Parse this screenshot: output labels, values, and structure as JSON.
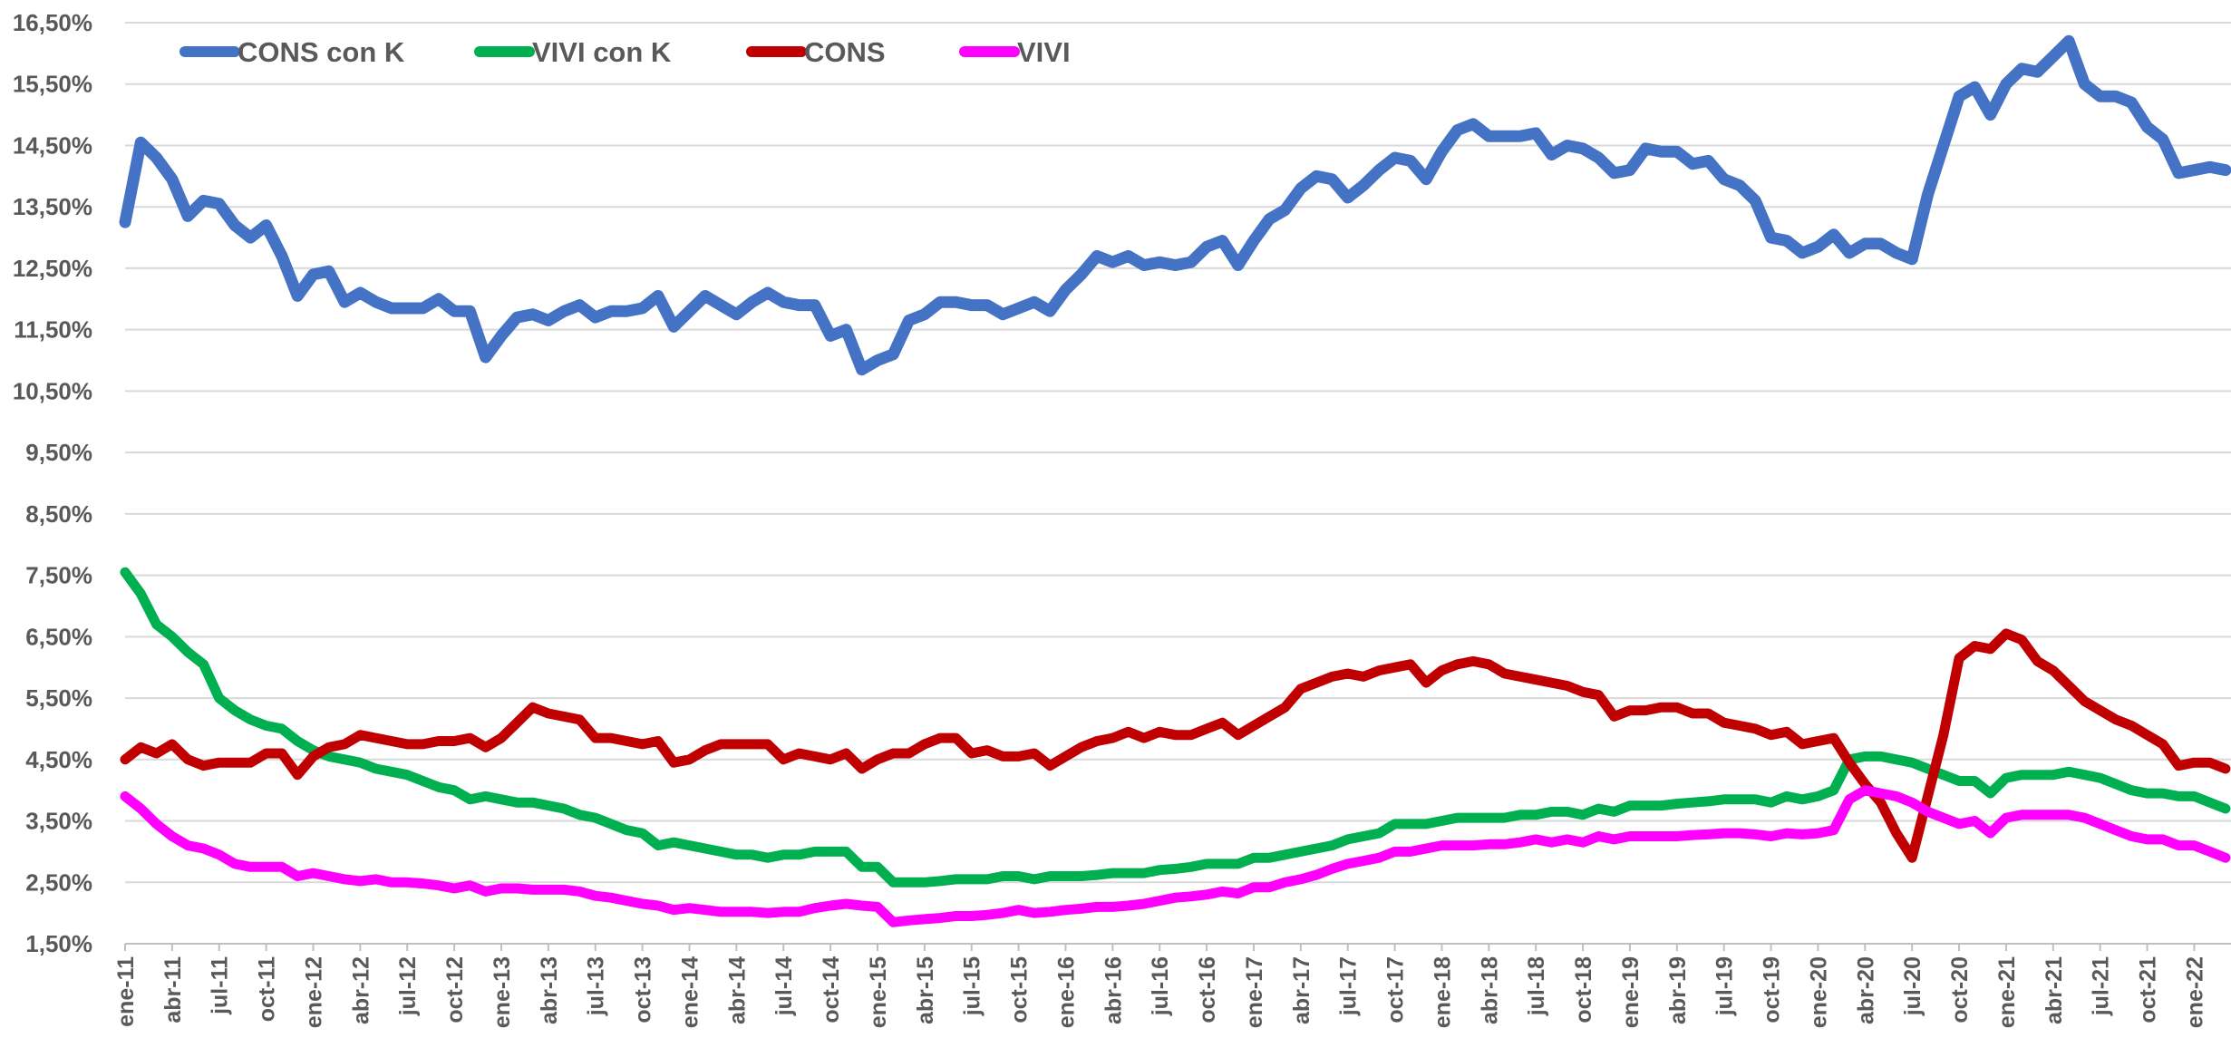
{
  "chart_data": {
    "type": "line",
    "categories": [
      "ene-11",
      null,
      null,
      "abr-11",
      null,
      null,
      "jul-11",
      null,
      null,
      "oct-11",
      null,
      null,
      "ene-12",
      null,
      null,
      "abr-12",
      null,
      null,
      "jul-12",
      null,
      null,
      "oct-12",
      null,
      null,
      "ene-13",
      null,
      null,
      "abr-13",
      null,
      null,
      "jul-13",
      null,
      null,
      "oct-13",
      null,
      null,
      "ene-14",
      null,
      null,
      "abr-14",
      null,
      null,
      "jul-14",
      null,
      null,
      "oct-14",
      null,
      null,
      "ene-15",
      null,
      null,
      "abr-15",
      null,
      null,
      "jul-15",
      null,
      null,
      "oct-15",
      null,
      null,
      "ene-16",
      null,
      null,
      "abr-16",
      null,
      null,
      "jul-16",
      null,
      null,
      "oct-16",
      null,
      null,
      "ene-17",
      null,
      null,
      "abr-17",
      null,
      null,
      "jul-17",
      null,
      null,
      "oct-17",
      null,
      null,
      "ene-18",
      null,
      null,
      "abr-18",
      null,
      null,
      "jul-18",
      null,
      null,
      "oct-18",
      null,
      null,
      "ene-19",
      null,
      null,
      "abr-19",
      null,
      null,
      "jul-19",
      null,
      null,
      "oct-19",
      null,
      null,
      "ene-20",
      null,
      null,
      "abr-20",
      null,
      null,
      "jul-20",
      null,
      null,
      "oct-20",
      null,
      null,
      "ene-21",
      null,
      null,
      "abr-21",
      null,
      null,
      "jul-21",
      null,
      null,
      "oct-21",
      null,
      null,
      "ene-22",
      null,
      null
    ],
    "series": [
      {
        "name": "CONS con K",
        "color": "#4472c4",
        "values": [
          13.25,
          14.55,
          14.3,
          13.95,
          13.35,
          13.6,
          13.55,
          13.2,
          13.0,
          13.2,
          12.7,
          12.05,
          12.4,
          12.45,
          11.95,
          12.1,
          11.95,
          11.85,
          11.85,
          11.85,
          12.0,
          11.8,
          11.8,
          11.05,
          11.4,
          11.7,
          11.75,
          11.65,
          11.8,
          11.9,
          11.7,
          11.8,
          11.8,
          11.85,
          12.05,
          11.55,
          11.8,
          12.05,
          11.9,
          11.75,
          11.95,
          12.1,
          11.95,
          11.9,
          11.9,
          11.4,
          11.5,
          10.85,
          11.0,
          11.1,
          11.65,
          11.75,
          11.95,
          11.95,
          11.9,
          11.9,
          11.75,
          11.85,
          11.95,
          11.8,
          12.15,
          12.4,
          12.7,
          12.6,
          12.7,
          12.55,
          12.6,
          12.55,
          12.6,
          12.85,
          12.95,
          12.55,
          12.95,
          13.3,
          13.45,
          13.8,
          14.0,
          13.95,
          13.65,
          13.85,
          14.1,
          14.3,
          14.25,
          13.95,
          14.4,
          14.75,
          14.85,
          14.65,
          14.65,
          14.65,
          14.7,
          14.35,
          14.5,
          14.45,
          14.3,
          14.05,
          14.1,
          14.45,
          14.4,
          14.4,
          14.2,
          14.25,
          13.95,
          13.85,
          13.6,
          13.0,
          12.95,
          12.75,
          12.85,
          13.05,
          12.75,
          12.9,
          12.9,
          12.75,
          12.65,
          13.7,
          14.5,
          15.3,
          15.45,
          15.0,
          15.5,
          15.75,
          15.7,
          15.95,
          16.2,
          15.5,
          15.3,
          15.3,
          15.2,
          14.8,
          14.6,
          14.05,
          14.1,
          14.15,
          14.1
        ]
      },
      {
        "name": "VIVI con K",
        "color": "#00b050",
        "values": [
          7.55,
          7.2,
          6.7,
          6.5,
          6.25,
          6.05,
          5.5,
          5.3,
          5.15,
          5.05,
          5.0,
          4.8,
          4.65,
          4.55,
          4.5,
          4.45,
          4.35,
          4.3,
          4.25,
          4.15,
          4.05,
          4.0,
          3.85,
          3.9,
          3.85,
          3.8,
          3.8,
          3.75,
          3.7,
          3.6,
          3.55,
          3.45,
          3.35,
          3.3,
          3.1,
          3.15,
          3.1,
          3.05,
          3.0,
          2.95,
          2.95,
          2.9,
          2.95,
          2.95,
          3.0,
          3.0,
          3.0,
          2.75,
          2.75,
          2.5,
          2.5,
          2.5,
          2.52,
          2.55,
          2.55,
          2.55,
          2.6,
          2.6,
          2.55,
          2.6,
          2.6,
          2.6,
          2.62,
          2.65,
          2.65,
          2.65,
          2.7,
          2.72,
          2.75,
          2.8,
          2.8,
          2.8,
          2.9,
          2.9,
          2.95,
          3.0,
          3.05,
          3.1,
          3.2,
          3.25,
          3.3,
          3.45,
          3.45,
          3.45,
          3.5,
          3.55,
          3.55,
          3.55,
          3.55,
          3.6,
          3.6,
          3.65,
          3.65,
          3.6,
          3.7,
          3.65,
          3.75,
          3.75,
          3.75,
          3.78,
          3.8,
          3.82,
          3.85,
          3.85,
          3.85,
          3.8,
          3.9,
          3.85,
          3.9,
          4.0,
          4.5,
          4.55,
          4.55,
          4.5,
          4.45,
          4.35,
          4.25,
          4.15,
          4.15,
          3.95,
          4.2,
          4.25,
          4.25,
          4.25,
          4.3,
          4.25,
          4.2,
          4.1,
          4.0,
          3.95,
          3.95,
          3.9,
          3.9,
          3.8,
          3.7
        ]
      },
      {
        "name": "CONS",
        "color": "#c00000",
        "values": [
          4.5,
          4.7,
          4.6,
          4.75,
          4.5,
          4.4,
          4.45,
          4.45,
          4.45,
          4.6,
          4.6,
          4.25,
          4.55,
          4.7,
          4.75,
          4.9,
          4.85,
          4.8,
          4.75,
          4.75,
          4.8,
          4.8,
          4.85,
          4.7,
          4.85,
          5.1,
          5.35,
          5.25,
          5.2,
          5.15,
          4.85,
          4.85,
          4.8,
          4.75,
          4.8,
          4.45,
          4.5,
          4.65,
          4.75,
          4.75,
          4.75,
          4.75,
          4.5,
          4.6,
          4.55,
          4.5,
          4.6,
          4.35,
          4.5,
          4.6,
          4.6,
          4.75,
          4.85,
          4.85,
          4.6,
          4.65,
          4.55,
          4.55,
          4.6,
          4.4,
          4.55,
          4.7,
          4.8,
          4.85,
          4.95,
          4.85,
          4.95,
          4.9,
          4.9,
          5.0,
          5.1,
          4.9,
          5.05,
          5.2,
          5.35,
          5.65,
          5.75,
          5.85,
          5.9,
          5.85,
          5.95,
          6.0,
          6.05,
          5.75,
          5.95,
          6.05,
          6.1,
          6.05,
          5.9,
          5.85,
          5.8,
          5.75,
          5.7,
          5.6,
          5.55,
          5.2,
          5.3,
          5.3,
          5.35,
          5.35,
          5.25,
          5.25,
          5.1,
          5.05,
          5.0,
          4.9,
          4.95,
          4.75,
          4.8,
          4.85,
          4.45,
          4.1,
          3.8,
          3.3,
          2.9,
          3.9,
          4.9,
          6.15,
          6.35,
          6.3,
          6.55,
          6.45,
          6.1,
          5.95,
          5.7,
          5.45,
          5.3,
          5.15,
          5.05,
          4.9,
          4.75,
          4.4,
          4.45,
          4.45,
          4.35
        ]
      },
      {
        "name": "VIVI",
        "color": "#ff00ff",
        "values": [
          3.9,
          3.7,
          3.45,
          3.25,
          3.1,
          3.05,
          2.95,
          2.8,
          2.75,
          2.75,
          2.75,
          2.6,
          2.65,
          2.6,
          2.55,
          2.52,
          2.55,
          2.5,
          2.5,
          2.48,
          2.45,
          2.4,
          2.45,
          2.35,
          2.4,
          2.4,
          2.38,
          2.38,
          2.38,
          2.35,
          2.28,
          2.25,
          2.2,
          2.15,
          2.12,
          2.05,
          2.08,
          2.05,
          2.02,
          2.02,
          2.02,
          2.0,
          2.02,
          2.02,
          2.08,
          2.12,
          2.15,
          2.12,
          2.1,
          1.85,
          1.88,
          1.9,
          1.92,
          1.95,
          1.95,
          1.97,
          2.0,
          2.05,
          2.0,
          2.02,
          2.05,
          2.07,
          2.1,
          2.1,
          2.12,
          2.15,
          2.2,
          2.25,
          2.27,
          2.3,
          2.35,
          2.32,
          2.42,
          2.42,
          2.5,
          2.55,
          2.62,
          2.72,
          2.8,
          2.85,
          2.9,
          3.0,
          3.0,
          3.05,
          3.1,
          3.1,
          3.1,
          3.12,
          3.12,
          3.15,
          3.2,
          3.15,
          3.2,
          3.15,
          3.25,
          3.2,
          3.25,
          3.25,
          3.25,
          3.25,
          3.27,
          3.28,
          3.3,
          3.3,
          3.28,
          3.25,
          3.3,
          3.28,
          3.3,
          3.35,
          3.85,
          4.0,
          3.95,
          3.9,
          3.8,
          3.65,
          3.55,
          3.45,
          3.5,
          3.3,
          3.55,
          3.6,
          3.6,
          3.6,
          3.6,
          3.55,
          3.45,
          3.35,
          3.25,
          3.2,
          3.2,
          3.1,
          3.1,
          3.0,
          2.9
        ]
      }
    ],
    "ylim": [
      1.5,
      16.5
    ],
    "yticks": [
      {
        "value": 1.5,
        "label": "1,50%"
      },
      {
        "value": 2.5,
        "label": "2,50%"
      },
      {
        "value": 3.5,
        "label": "3,50%"
      },
      {
        "value": 4.5,
        "label": "4,50%"
      },
      {
        "value": 5.5,
        "label": "5,50%"
      },
      {
        "value": 6.5,
        "label": "6,50%"
      },
      {
        "value": 7.5,
        "label": "7,50%"
      },
      {
        "value": 8.5,
        "label": "8,50%"
      },
      {
        "value": 9.5,
        "label": "9,50%"
      },
      {
        "value": 10.5,
        "label": "10,50%"
      },
      {
        "value": 11.5,
        "label": "11,50%"
      },
      {
        "value": 12.5,
        "label": "12,50%"
      },
      {
        "value": 13.5,
        "label": "13,50%"
      },
      {
        "value": 14.5,
        "label": "14,50%"
      },
      {
        "value": 15.5,
        "label": "15,50%"
      },
      {
        "value": 16.5,
        "label": "16,50%"
      }
    ],
    "grid": true,
    "legend": "top-left"
  }
}
